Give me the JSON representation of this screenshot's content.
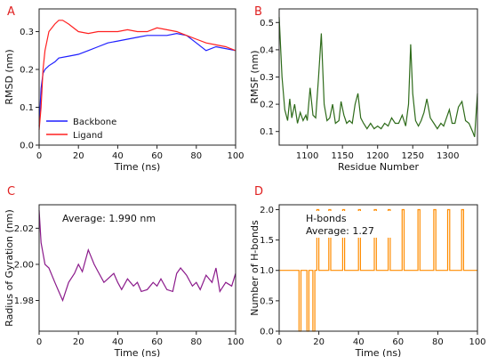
{
  "chart_data": [
    {
      "panel": "A",
      "type": "line",
      "xlabel": "Time (ns)",
      "ylabel": "RMSD (nm)",
      "xlim": [
        0,
        100
      ],
      "ylim": [
        0,
        0.36
      ],
      "xticks": [
        0,
        20,
        40,
        60,
        80,
        100
      ],
      "yticks": [
        0.0,
        0.1,
        0.2,
        0.3
      ],
      "ytick_labels": [
        "0.0",
        "0.1",
        "0.2",
        "0.3"
      ],
      "legend": "lower-left",
      "series": [
        {
          "name": "Backbone",
          "color": "#1f1fff",
          "x": [
            0,
            1,
            2,
            3,
            5,
            8,
            10,
            15,
            20,
            25,
            30,
            35,
            40,
            45,
            50,
            55,
            60,
            65,
            70,
            75,
            80,
            85,
            90,
            95,
            100
          ],
          "y": [
            0.05,
            0.15,
            0.19,
            0.2,
            0.21,
            0.22,
            0.23,
            0.235,
            0.24,
            0.25,
            0.26,
            0.27,
            0.275,
            0.28,
            0.285,
            0.29,
            0.29,
            0.29,
            0.295,
            0.29,
            0.27,
            0.25,
            0.26,
            0.255,
            0.25
          ]
        },
        {
          "name": "Ligand",
          "color": "#ff2020",
          "x": [
            0,
            1,
            2,
            3,
            5,
            8,
            10,
            12,
            15,
            20,
            25,
            30,
            35,
            40,
            45,
            50,
            55,
            60,
            65,
            70,
            75,
            80,
            85,
            90,
            95,
            100
          ],
          "y": [
            0.04,
            0.1,
            0.2,
            0.25,
            0.3,
            0.32,
            0.33,
            0.33,
            0.32,
            0.3,
            0.295,
            0.3,
            0.3,
            0.3,
            0.305,
            0.3,
            0.3,
            0.31,
            0.305,
            0.3,
            0.29,
            0.28,
            0.27,
            0.265,
            0.26,
            0.25
          ]
        }
      ]
    },
    {
      "panel": "B",
      "type": "line",
      "xlabel": "Residue Number",
      "ylabel": "RMSF (nm)",
      "xlim": [
        1060,
        1342
      ],
      "ylim": [
        0.05,
        0.55
      ],
      "xticks": [
        1100,
        1150,
        1200,
        1250,
        1300
      ],
      "yticks": [
        0.1,
        0.2,
        0.3,
        0.4,
        0.5
      ],
      "series": [
        {
          "color": "#2e6b1a",
          "x": [
            1060,
            1064,
            1068,
            1072,
            1075,
            1078,
            1082,
            1086,
            1090,
            1094,
            1098,
            1100,
            1104,
            1108,
            1112,
            1116,
            1120,
            1124,
            1128,
            1132,
            1136,
            1140,
            1145,
            1148,
            1152,
            1156,
            1160,
            1164,
            1168,
            1172,
            1176,
            1180,
            1185,
            1190,
            1195,
            1200,
            1205,
            1210,
            1215,
            1220,
            1225,
            1230,
            1235,
            1240,
            1244,
            1247,
            1250,
            1254,
            1258,
            1262,
            1266,
            1270,
            1275,
            1280,
            1285,
            1290,
            1294,
            1298,
            1302,
            1306,
            1310,
            1315,
            1320,
            1325,
            1330,
            1335,
            1338,
            1342
          ],
          "y": [
            0.52,
            0.3,
            0.18,
            0.14,
            0.22,
            0.15,
            0.2,
            0.13,
            0.17,
            0.14,
            0.16,
            0.14,
            0.26,
            0.16,
            0.15,
            0.3,
            0.46,
            0.2,
            0.14,
            0.15,
            0.2,
            0.13,
            0.14,
            0.21,
            0.16,
            0.13,
            0.14,
            0.13,
            0.2,
            0.24,
            0.15,
            0.13,
            0.11,
            0.13,
            0.11,
            0.12,
            0.11,
            0.13,
            0.12,
            0.15,
            0.13,
            0.13,
            0.16,
            0.12,
            0.2,
            0.42,
            0.24,
            0.14,
            0.12,
            0.14,
            0.17,
            0.22,
            0.15,
            0.13,
            0.11,
            0.13,
            0.12,
            0.15,
            0.18,
            0.13,
            0.13,
            0.19,
            0.21,
            0.14,
            0.13,
            0.1,
            0.08,
            0.24
          ]
        }
      ]
    },
    {
      "panel": "C",
      "type": "line",
      "xlabel": "Time (ns)",
      "ylabel": "Radius of Gyration (nm)",
      "xlim": [
        0,
        100
      ],
      "ylim": [
        1.963,
        2.033
      ],
      "xticks": [
        0,
        20,
        40,
        60,
        80,
        100
      ],
      "yticks": [
        1.98,
        2.0,
        2.02
      ],
      "ytick_labels": [
        "1.98",
        "2.00",
        "2.02"
      ],
      "annotation": "Average: 1.990 nm",
      "series": [
        {
          "color": "#8b1a8b",
          "x": [
            0,
            1,
            3,
            5,
            8,
            10,
            12,
            15,
            18,
            20,
            22,
            25,
            28,
            30,
            33,
            35,
            38,
            40,
            42,
            45,
            48,
            50,
            52,
            55,
            58,
            60,
            62,
            65,
            68,
            70,
            72,
            75,
            78,
            80,
            82,
            85,
            88,
            90,
            92,
            95,
            98,
            100
          ],
          "y": [
            2.03,
            2.012,
            2.0,
            1.998,
            1.99,
            1.985,
            1.98,
            1.99,
            1.995,
            2.0,
            1.996,
            2.008,
            2.0,
            1.996,
            1.99,
            1.992,
            1.995,
            1.99,
            1.986,
            1.992,
            1.988,
            1.99,
            1.985,
            1.986,
            1.99,
            1.988,
            1.992,
            1.986,
            1.985,
            1.995,
            1.998,
            1.994,
            1.988,
            1.99,
            1.986,
            1.994,
            1.99,
            1.998,
            1.985,
            1.99,
            1.988,
            1.995
          ]
        }
      ]
    },
    {
      "panel": "D",
      "type": "line",
      "xlabel": "Time (ns)",
      "ylabel": "Number of H-bonds",
      "xlim": [
        0,
        100
      ],
      "ylim": [
        0,
        2.08
      ],
      "xticks": [
        0,
        20,
        40,
        60,
        80,
        100
      ],
      "yticks": [
        0.0,
        0.5,
        1.0,
        1.5,
        2.0
      ],
      "ytick_labels": [
        "0.0",
        "0.5",
        "1.0",
        "1.5",
        "2.0"
      ],
      "legend_label": "H-bonds",
      "annotation": "Average: 1.27",
      "series": [
        {
          "color": "#ff8c00",
          "x": [
            0,
            1,
            1,
            10,
            10,
            11,
            11,
            14,
            14,
            15,
            15,
            17,
            17,
            18,
            18,
            19,
            19,
            20,
            20,
            25,
            25,
            26,
            26,
            32,
            32,
            33,
            33,
            40,
            40,
            41,
            41,
            48,
            48,
            49,
            49,
            55,
            55,
            56,
            56,
            62,
            62,
            63,
            63,
            70,
            70,
            71,
            71,
            78,
            78,
            79,
            79,
            85,
            85,
            86,
            86,
            92,
            92,
            93,
            93,
            100
          ],
          "y": [
            1,
            1,
            1,
            1,
            0,
            0,
            1,
            1,
            0,
            0,
            1,
            1,
            0,
            0,
            1,
            1,
            2,
            2,
            1,
            1,
            2,
            2,
            1,
            1,
            2,
            2,
            1,
            1,
            2,
            2,
            1,
            1,
            2,
            2,
            1,
            1,
            2,
            2,
            1,
            1,
            2,
            2,
            1,
            1,
            2,
            2,
            1,
            1,
            2,
            2,
            1,
            1,
            2,
            2,
            1,
            1,
            2,
            2,
            1,
            1
          ]
        }
      ]
    }
  ]
}
